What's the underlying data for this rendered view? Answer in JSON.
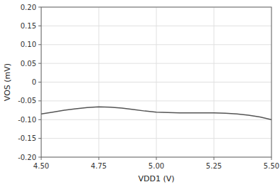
{
  "chart_data": {
    "type": "line",
    "x": [
      4.5,
      4.55,
      4.6,
      4.65,
      4.7,
      4.75,
      4.8,
      4.85,
      4.9,
      4.95,
      5.0,
      5.05,
      5.1,
      5.15,
      5.2,
      5.25,
      5.3,
      5.35,
      5.4,
      5.45,
      5.5
    ],
    "values": [
      -0.085,
      -0.08,
      -0.075,
      -0.071,
      -0.068,
      -0.066,
      -0.067,
      -0.069,
      -0.073,
      -0.077,
      -0.08,
      -0.081,
      -0.082,
      -0.082,
      -0.082,
      -0.082,
      -0.083,
      -0.085,
      -0.088,
      -0.093,
      -0.1
    ],
    "color": "#555555",
    "xlim": [
      4.5,
      5.5
    ],
    "ylim": [
      -0.2,
      0.2
    ],
    "xticks": [
      {
        "value": 4.5,
        "label": "4.50"
      },
      4.75,
      {
        "value": 5.0,
        "label": "5.00"
      },
      5.25,
      {
        "value": 5.5,
        "label": "5.50"
      }
    ],
    "yticks": [
      {
        "value": -0.2,
        "label": "-0.20"
      },
      -0.15,
      {
        "value": -0.1,
        "label": "-0.10"
      },
      -0.05,
      0,
      0.05,
      {
        "value": 0.1,
        "label": "0.10"
      },
      0.15,
      {
        "value": 0.2,
        "label": "0.20"
      }
    ],
    "x_label": "VDD1 (V)",
    "y_label": "VOS (mV)",
    "grid": true
  }
}
